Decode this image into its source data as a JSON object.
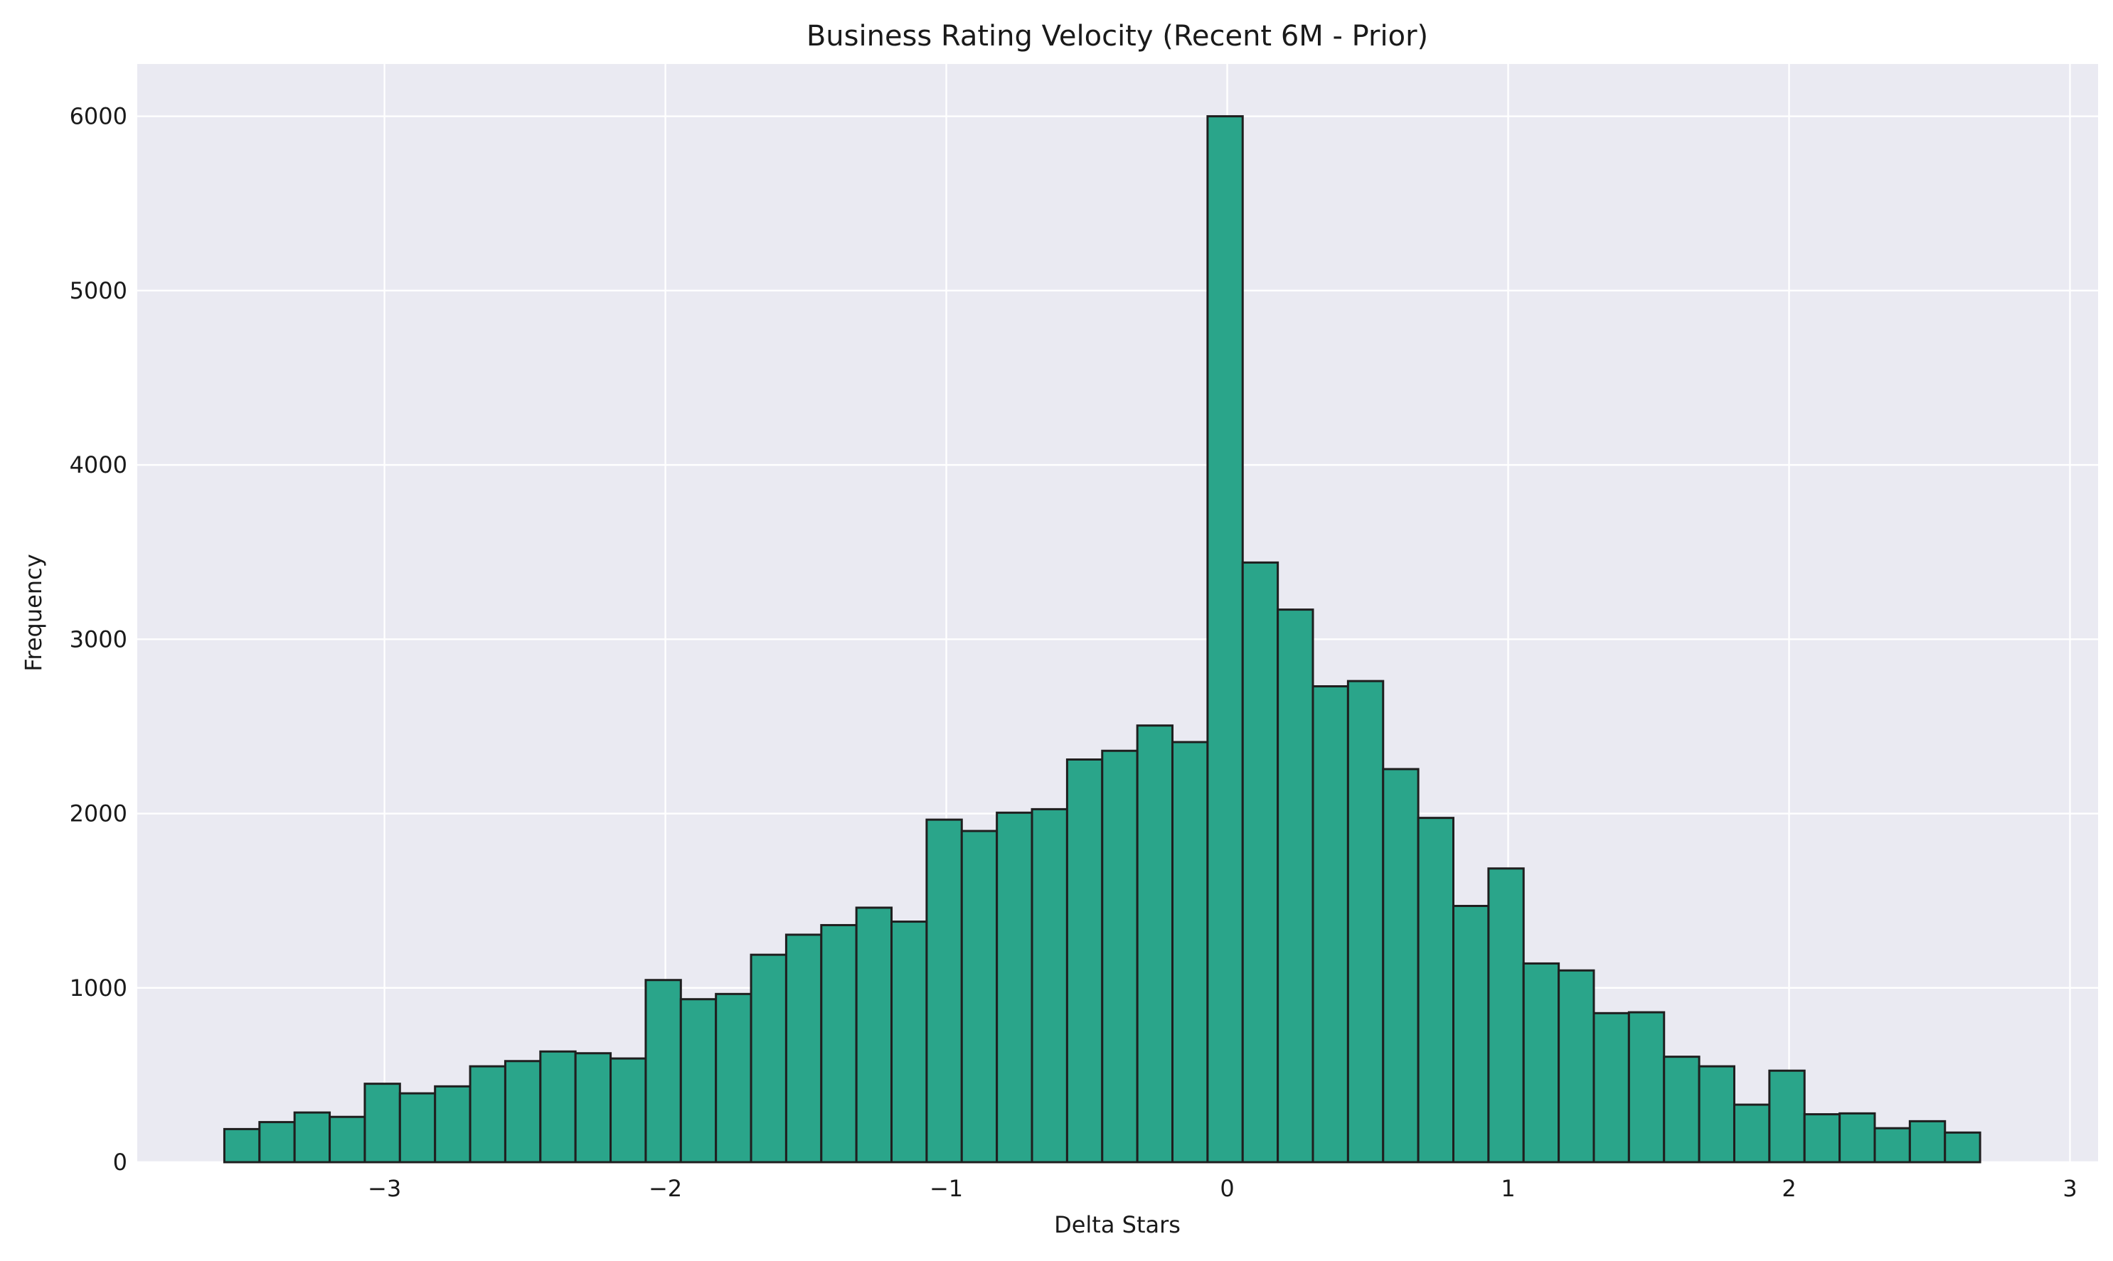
{
  "chart_data": {
    "type": "bar",
    "title": "Business Rating Velocity (Recent 6M - Prior)",
    "xlabel": "Delta Stars",
    "ylabel": "Frequency",
    "xlim": [
      -3.88,
      3.1
    ],
    "ylim": [
      0,
      6300
    ],
    "x_ticks": [
      -3,
      -2,
      -1,
      0,
      1,
      2,
      3
    ],
    "x_tick_labels": [
      "−3",
      "−2",
      "−1",
      "0",
      "1",
      "2",
      "3"
    ],
    "y_ticks": [
      0,
      1000,
      2000,
      3000,
      4000,
      5000,
      6000
    ],
    "y_tick_labels": [
      "0",
      "1000",
      "2000",
      "3000",
      "4000",
      "5000",
      "6000"
    ],
    "grid": true,
    "colors": {
      "bar_fill": "#2aa58a",
      "bar_edge": "#1f1f1f",
      "plot_background": "#eaeaf2",
      "grid": "#ffffff"
    },
    "bin_edges": [
      -3.57,
      -3.445,
      -3.32,
      -3.195,
      -3.07,
      -2.945,
      -2.82,
      -2.695,
      -2.57,
      -2.445,
      -2.32,
      -2.195,
      -2.07,
      -1.945,
      -1.82,
      -1.695,
      -1.57,
      -1.445,
      -1.32,
      -1.195,
      -1.07,
      -0.945,
      -0.82,
      -0.695,
      -0.57,
      -0.445,
      -0.32,
      -0.195,
      -0.07,
      0.055,
      0.18,
      0.305,
      0.43,
      0.555,
      0.68,
      0.805,
      0.93,
      1.055,
      1.18,
      1.305,
      1.43,
      1.555,
      1.68,
      1.805,
      1.93,
      2.055,
      2.18,
      2.305,
      2.43,
      2.555,
      2.68
    ],
    "values": [
      190,
      230,
      285,
      260,
      450,
      395,
      435,
      550,
      580,
      635,
      625,
      595,
      1045,
      935,
      965,
      1190,
      1305,
      1360,
      1460,
      1380,
      1965,
      1900,
      2005,
      2025,
      2310,
      2360,
      2505,
      2410,
      6000,
      3440,
      3170,
      2730,
      2760,
      2255,
      1975,
      1470,
      1685,
      1140,
      1100,
      855,
      860,
      605,
      550,
      330,
      525,
      275,
      280,
      195,
      235,
      170
    ]
  }
}
